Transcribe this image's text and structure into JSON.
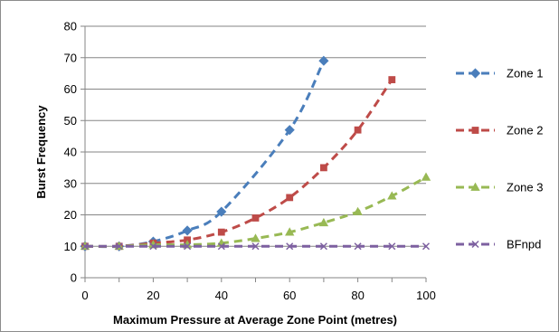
{
  "chart_data": {
    "type": "line",
    "xlabel": "Maximum Pressure at Average Zone Point (metres)",
    "ylabel": "Burst Frequency",
    "xlim": [
      0,
      100
    ],
    "ylim": [
      0,
      80
    ],
    "x_ticks": [
      "0",
      "20",
      "40",
      "60",
      "80",
      "100"
    ],
    "y_ticks": [
      "0",
      "10",
      "20",
      "30",
      "40",
      "50",
      "60",
      "70",
      "80"
    ],
    "grid": "horizontal",
    "legend_position": "right",
    "series": [
      {
        "name": "Zone 1",
        "color": "#4a7ebb",
        "marker": "diamond",
        "line_style": "dashed",
        "x": [
          0,
          10,
          20,
          30,
          40,
          60,
          70
        ],
        "y": [
          10,
          10,
          11.5,
          15,
          21,
          47,
          69
        ]
      },
      {
        "name": "Zone 2",
        "color": "#be4b48",
        "marker": "square",
        "line_style": "dashed",
        "x": [
          0,
          10,
          20,
          30,
          40,
          50,
          60,
          70,
          80,
          90
        ],
        "y": [
          10,
          10,
          11,
          12,
          14.5,
          19,
          25.5,
          35,
          47,
          63
        ]
      },
      {
        "name": "Zone 3",
        "color": "#98b954",
        "marker": "triangle",
        "line_style": "dashed",
        "x": [
          0,
          10,
          20,
          30,
          40,
          50,
          60,
          70,
          80,
          90,
          100
        ],
        "y": [
          10,
          10,
          10.5,
          10.5,
          11,
          12.5,
          14.5,
          17.5,
          21,
          26,
          32
        ]
      },
      {
        "name": "BFnpd",
        "color": "#7d60a0",
        "marker": "x",
        "line_style": "dashed",
        "x": [
          0,
          10,
          20,
          30,
          40,
          50,
          60,
          70,
          80,
          90,
          100
        ],
        "y": [
          10,
          10,
          10,
          10,
          10,
          10,
          10,
          10,
          10,
          10,
          10
        ]
      }
    ]
  }
}
